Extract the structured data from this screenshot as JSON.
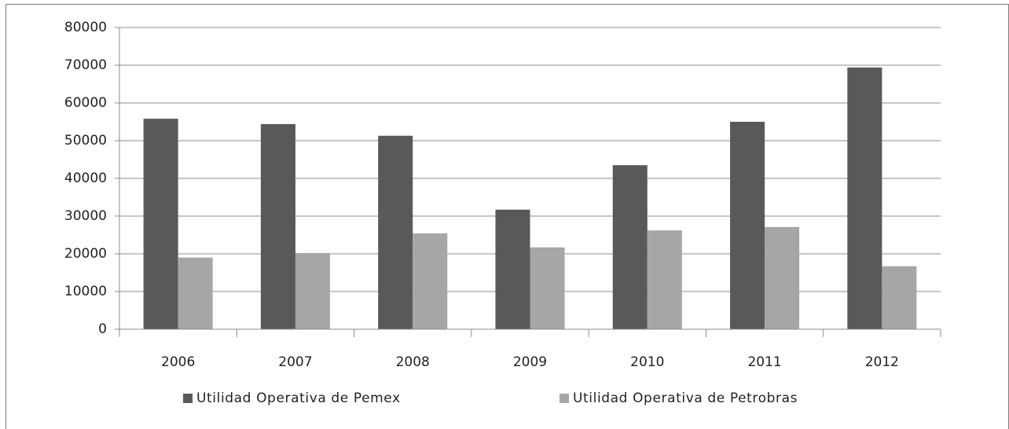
{
  "chart_data": {
    "type": "bar",
    "categories": [
      "2006",
      "2007",
      "2008",
      "2009",
      "2010",
      "2011",
      "2012"
    ],
    "series": [
      {
        "name": "Utilidad Operativa de Pemex",
        "color": "#595959",
        "values": [
          55800,
          54400,
          51300,
          31700,
          43500,
          55000,
          69400
        ]
      },
      {
        "name": "Utilidad Operativa de Petrobras",
        "color": "#a6a6a6",
        "values": [
          19000,
          20200,
          25400,
          21700,
          26200,
          27100,
          16700
        ]
      }
    ],
    "ylim": [
      0,
      80000
    ],
    "yticks": [
      0,
      10000,
      20000,
      30000,
      40000,
      50000,
      60000,
      70000,
      80000
    ],
    "grid": true,
    "legend": "bottom"
  }
}
